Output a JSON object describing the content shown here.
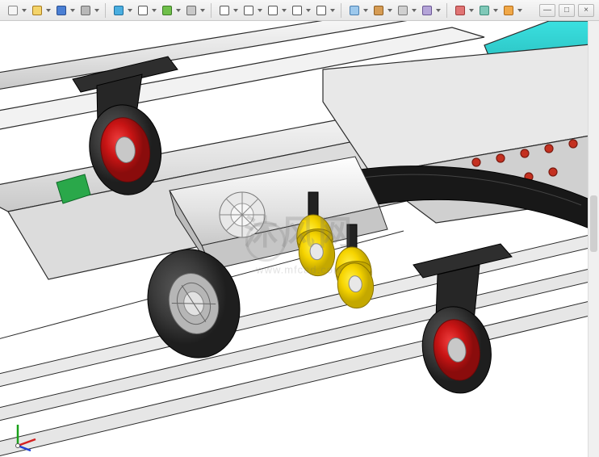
{
  "toolbar": {
    "icons": [
      {
        "name": "new-icon",
        "color": "#f5f5f5",
        "stroke": "#888"
      },
      {
        "name": "open-icon",
        "color": "#f4d46a",
        "stroke": "#a87c1e"
      },
      {
        "name": "save-icon",
        "color": "#4a7fd4",
        "stroke": "#2a4e8f"
      },
      {
        "name": "print-icon",
        "color": "#b8b8b8",
        "stroke": "#6a6a6a"
      },
      {
        "name": "undo-icon",
        "color": "#4aaee0",
        "stroke": "#1f6e9c"
      },
      {
        "name": "select-icon",
        "color": "#ffffff",
        "stroke": "#555"
      },
      {
        "name": "rebuild-icon",
        "color": "#6fbf4a",
        "stroke": "#3d7a26"
      },
      {
        "name": "options-icon",
        "color": "#c8c8c8",
        "stroke": "#6a6a6a"
      },
      {
        "name": "zoom-fit-icon",
        "color": "#ffffff",
        "stroke": "#555"
      },
      {
        "name": "zoom-area-icon",
        "color": "#ffffff",
        "stroke": "#555"
      },
      {
        "name": "pan-icon",
        "color": "#ffffff",
        "stroke": "#555"
      },
      {
        "name": "rotate-icon",
        "color": "#ffffff",
        "stroke": "#555"
      },
      {
        "name": "view-icon",
        "color": "#ffffff",
        "stroke": "#555"
      },
      {
        "name": "display-icon",
        "color": "#9cc8ec",
        "stroke": "#4a7fb0"
      },
      {
        "name": "shaded-icon",
        "color": "#d69c54",
        "stroke": "#8f5e22"
      },
      {
        "name": "edges-icon",
        "color": "#d0d0d0",
        "stroke": "#777"
      },
      {
        "name": "section-icon",
        "color": "#b4a4d8",
        "stroke": "#6a5694"
      },
      {
        "name": "appearance-icon",
        "color": "#e07474",
        "stroke": "#a03a3a"
      },
      {
        "name": "scene-icon",
        "color": "#7fc8b8",
        "stroke": "#3e8c7a"
      },
      {
        "name": "render-icon",
        "color": "#f0a848",
        "stroke": "#b06a18"
      }
    ],
    "window_controls": {
      "minimize": "—",
      "maximize": "□",
      "close": "×"
    }
  },
  "viewport": {
    "background": "#ffffff",
    "watermark_text": "沐风网",
    "watermark_url": "www.mfcad.com",
    "triad": {
      "x_color": "#d42020",
      "y_color": "#1aa01a",
      "z_color": "#2040d4"
    },
    "colors": {
      "edge": "#2b2b2b",
      "frame_fill": "#f2f2f2",
      "frame_light": "#ffffff",
      "frame_mid": "#d2d2d2",
      "frame_dark": "#bcbcbc",
      "floor_rail": "#dedede",
      "caster_red": "#c81414",
      "caster_red_dk": "#8a0c0c",
      "caster_plate": "#2e2e2e",
      "tire_black": "#3a3a3a",
      "tire_dark": "#1e1e1e",
      "hub_grey": "#b6b6b6",
      "yellow": "#f6d400",
      "yellow_dk": "#c4a800",
      "bumper": "#181818",
      "teal": "#26c4c4",
      "teal_dk": "#159696",
      "bolt_red": "#c43020",
      "bracket_green": "#2aa84a"
    }
  }
}
